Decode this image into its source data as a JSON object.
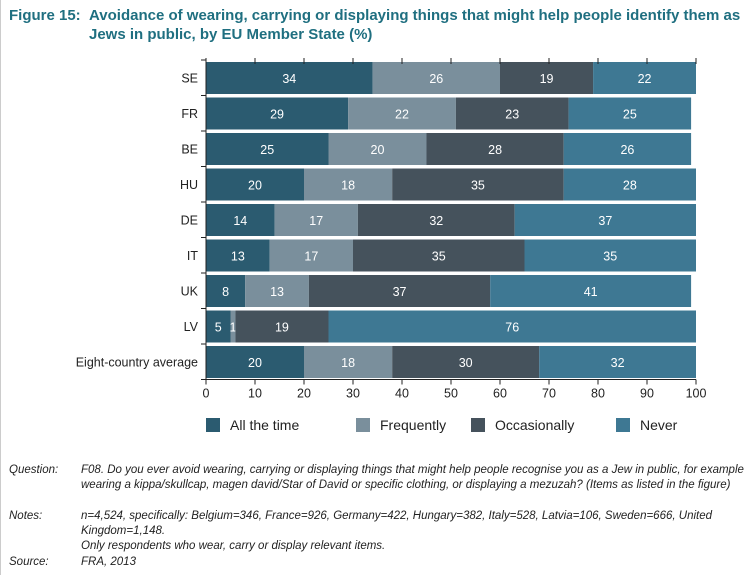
{
  "title": {
    "number": "Figure 15:",
    "text": "Avoidance of wearing, carrying or displaying things that might help people identify them as Jews in public, by EU Member State (%)"
  },
  "chart_data": {
    "type": "bar",
    "orientation": "horizontal",
    "stacked": true,
    "categories": [
      "SE",
      "FR",
      "BE",
      "HU",
      "DE",
      "IT",
      "UK",
      "LV",
      "Eight-country average"
    ],
    "series": [
      {
        "name": "All the time",
        "color": "#2b5b70",
        "values": [
          34,
          29,
          25,
          20,
          14,
          13,
          8,
          5,
          20
        ]
      },
      {
        "name": "Frequently",
        "color": "#7a8f9c",
        "values": [
          26,
          22,
          20,
          18,
          17,
          17,
          13,
          1,
          18
        ]
      },
      {
        "name": "Occasionally",
        "color": "#45525c",
        "values": [
          19,
          23,
          28,
          35,
          32,
          35,
          37,
          19,
          30
        ]
      },
      {
        "name": "Never",
        "color": "#3e7893",
        "values": [
          22,
          25,
          26,
          28,
          37,
          35,
          41,
          76,
          32
        ]
      }
    ],
    "xlim": [
      0,
      100
    ],
    "xticks": [
      "0",
      "10",
      "20",
      "30",
      "40",
      "50",
      "60",
      "70",
      "80",
      "90",
      "100"
    ],
    "legend": "bottom",
    "grid": false
  },
  "footnotes": [
    {
      "key": "Question:",
      "text": "F08. Do you ever avoid wearing, carrying or displaying things that might help people recognise you as a Jew in public, for example wearing a kippa/skullcap, magen david/Star of David or specific clothing, or displaying a mezuzah? (Items as listed in the figure)"
    },
    {
      "key": "Notes:",
      "text": "n=4,524, specifically: Belgium=346, France=926, Germany=422, Hungary=382, Italy=528, Latvia=106, Sweden=666, United Kingdom=1,148."
    },
    {
      "key": "",
      "text": "Only respondents who wear, carry or display relevant items."
    },
    {
      "key": "Source:",
      "text": "FRA, 2013"
    }
  ]
}
